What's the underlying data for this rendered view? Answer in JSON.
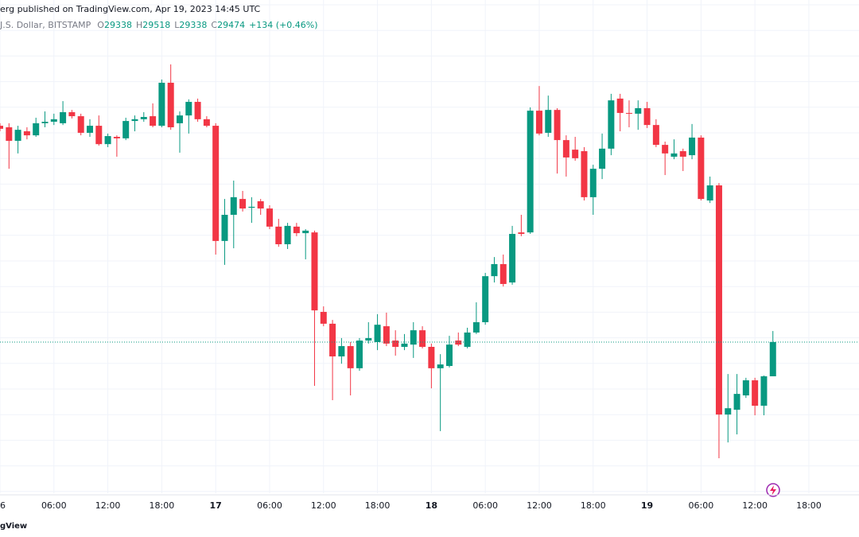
{
  "header": {
    "published": "erg published on TradingView.com, Apr 19, 2023 14:45 UTC",
    "symbol": "J.S. Dollar, BITSTAMP",
    "ohlc_labels": [
      "O",
      "H",
      "L",
      "C"
    ],
    "change": "+134 (+0.46%)"
  },
  "footer": {
    "logo": "gView"
  },
  "chart_data": {
    "type": "candlestick",
    "up_color": "#089981",
    "down_color": "#f23645",
    "xlim": [
      0,
      95.58
    ],
    "ylim": [
      28873,
      30834
    ],
    "xticks": [
      {
        "value": 0,
        "label": "6"
      },
      {
        "value": 6,
        "label": "06:00"
      },
      {
        "value": 12,
        "label": "12:00"
      },
      {
        "value": 18,
        "label": "18:00"
      },
      {
        "value": 24,
        "label": "17"
      },
      {
        "value": 30,
        "label": "06:00"
      },
      {
        "value": 36,
        "label": "12:00"
      },
      {
        "value": 42,
        "label": "18:00"
      },
      {
        "value": 48,
        "label": "18"
      },
      {
        "value": 54,
        "label": "06:00"
      },
      {
        "value": 60,
        "label": "12:00"
      },
      {
        "value": 66,
        "label": "18:00"
      },
      {
        "value": 72,
        "label": "19"
      },
      {
        "value": 78,
        "label": "06:00"
      },
      {
        "value": 84,
        "label": "12:00"
      },
      {
        "value": 90,
        "label": "18:00"
      }
    ],
    "x": [
      0,
      1,
      2,
      3,
      4,
      5,
      6,
      7,
      8,
      9,
      10,
      11,
      12,
      13,
      14,
      15,
      16,
      17,
      18,
      19,
      20,
      21,
      22,
      23,
      24,
      25,
      26,
      27,
      28,
      29,
      30,
      31,
      32,
      33,
      34,
      35,
      36,
      37,
      38,
      39,
      40,
      41,
      42,
      43,
      44,
      45,
      46,
      47,
      48,
      49,
      50,
      51,
      52,
      53,
      54,
      55,
      56,
      57,
      58,
      59,
      60,
      61,
      62,
      63,
      64,
      65,
      66,
      67,
      68,
      69,
      70,
      71,
      72,
      73,
      74,
      75,
      76,
      77,
      78,
      79,
      80,
      81,
      82,
      83,
      84,
      85,
      86
    ],
    "open": [
      30334,
      30328,
      30274,
      30312,
      30296,
      30344,
      30350,
      30344,
      30388,
      30372,
      30306,
      30334,
      30261,
      30290,
      30284,
      30353,
      30360,
      30372,
      30334,
      30505,
      30344,
      30375,
      30429,
      30360,
      30334,
      29876,
      29980,
      30043,
      30008,
      30034,
      30005,
      29933,
      29863,
      29933,
      29907,
      29910,
      29594,
      29547,
      29417,
      29458,
      29370,
      29480,
      29474,
      29537,
      29480,
      29455,
      29464,
      29521,
      29455,
      29370,
      29379,
      29480,
      29455,
      29512,
      29553,
      29736,
      29784,
      29711,
      29910,
      29910,
      30394,
      30306,
      30397,
      30277,
      30239,
      30233,
      30050,
      30163,
      30243,
      30442,
      30385,
      30382,
      30404,
      30337,
      30258,
      30211,
      30233,
      30217,
      30287,
      30037,
      30097,
      29186,
      29205,
      29262,
      29322,
      29221,
      29338
    ],
    "high": [
      30344,
      30344,
      30334,
      30328,
      30366,
      30391,
      30382,
      30432,
      30397,
      30382,
      30360,
      30375,
      30303,
      30296,
      30366,
      30375,
      30388,
      30423,
      30518,
      30578,
      30391,
      30439,
      30442,
      30372,
      30344,
      30043,
      30116,
      30075,
      30050,
      30043,
      30018,
      29964,
      29948,
      29948,
      29923,
      29917,
      29616,
      29562,
      29490,
      29474,
      29490,
      29553,
      29585,
      29591,
      29521,
      29506,
      29553,
      29537,
      29468,
      29426,
      29499,
      29512,
      29531,
      29632,
      29749,
      29812,
      29822,
      29936,
      29980,
      30407,
      30492,
      30454,
      30404,
      30296,
      30290,
      30249,
      30179,
      30303,
      30461,
      30461,
      30435,
      30435,
      30429,
      30360,
      30271,
      30280,
      30243,
      30341,
      30296,
      30132,
      30106,
      29347,
      29347,
      29332,
      29332,
      29341,
      29518
    ],
    "low": [
      30312,
      30163,
      30224,
      30280,
      30290,
      30328,
      30337,
      30337,
      30363,
      30296,
      30290,
      30255,
      30249,
      30211,
      30277,
      30312,
      30350,
      30328,
      30328,
      30318,
      30227,
      30303,
      30350,
      30328,
      29822,
      29781,
      29847,
      29993,
      29948,
      29980,
      29923,
      29853,
      29844,
      29895,
      29803,
      29300,
      29537,
      29243,
      29388,
      29262,
      29360,
      29468,
      29442,
      29458,
      29420,
      29442,
      29411,
      29449,
      29290,
      29120,
      29373,
      29458,
      29449,
      29506,
      29543,
      29711,
      29695,
      29702,
      29895,
      29904,
      30296,
      30290,
      30144,
      30132,
      30195,
      30037,
      29980,
      30122,
      30217,
      30312,
      30328,
      30318,
      30325,
      30249,
      30138,
      30201,
      30154,
      30201,
      30037,
      30027,
      29012,
      29075,
      29107,
      29252,
      29183,
      29183,
      29338
    ],
    "close": [
      30322,
      30274,
      30318,
      30296,
      30344,
      30350,
      30360,
      30388,
      30372,
      30306,
      30334,
      30261,
      30293,
      30284,
      30353,
      30360,
      30369,
      30334,
      30505,
      30328,
      30375,
      30429,
      30360,
      30334,
      29876,
      29980,
      30050,
      30005,
      30012,
      30005,
      29933,
      29863,
      29936,
      29907,
      29917,
      29600,
      29547,
      29417,
      29458,
      29370,
      29480,
      29490,
      29543,
      29468,
      29455,
      29468,
      29521,
      29455,
      29370,
      29385,
      29464,
      29464,
      29512,
      29553,
      29736,
      29784,
      29705,
      29904,
      29904,
      30394,
      30303,
      30397,
      30277,
      30208,
      30205,
      30050,
      30163,
      30243,
      30435,
      30385,
      30382,
      30404,
      30337,
      30258,
      30224,
      30224,
      30211,
      30287,
      30043,
      30097,
      29186,
      29211,
      29268,
      29322,
      29221,
      29338,
      29474
    ]
  }
}
